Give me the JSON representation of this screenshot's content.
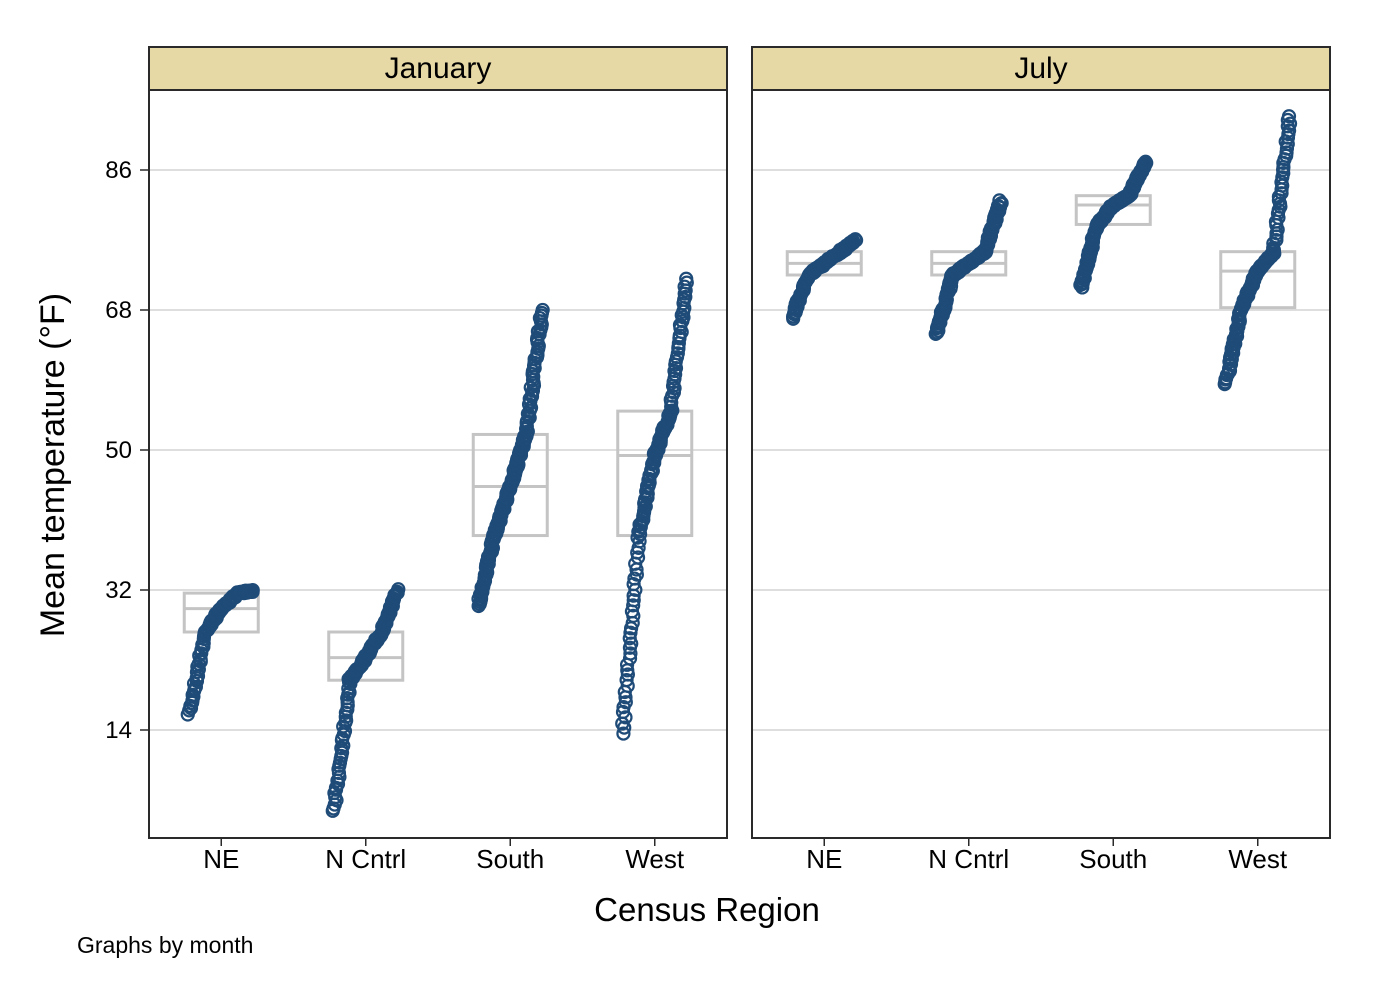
{
  "chart_data": {
    "type": "scatter",
    "subtype": "stripplot-with-boxes",
    "ylabel": "Mean temperature (°F)",
    "xlabel": "Census Region",
    "note": "Graphs by month",
    "yticks": [
      14,
      32,
      50,
      68,
      86
    ],
    "ylim": [
      0,
      96
    ],
    "grid": true,
    "colors": {
      "point": "#1f4b78",
      "box": "#c4c4c4",
      "strip": "#e6d9a6",
      "grid": "#dedede"
    },
    "categories": [
      "NE",
      "N Cntrl",
      "South",
      "West"
    ],
    "panels": [
      {
        "title": "January",
        "groups": [
          {
            "category": "NE",
            "min": 16.1,
            "q1": 26.6,
            "median": 29.6,
            "q3": 31.6,
            "max": 31.9,
            "n": 120
          },
          {
            "category": "N Cntrl",
            "min": 3.5,
            "q1": 20.4,
            "median": 23.3,
            "q3": 26.6,
            "max": 32.0,
            "n": 150
          },
          {
            "category": "South",
            "min": 30.0,
            "q1": 39.0,
            "median": 45.3,
            "q3": 52.0,
            "max": 68.0,
            "n": 180
          },
          {
            "category": "West",
            "min": 13.5,
            "q1": 39.0,
            "median": 49.3,
            "q3": 55.0,
            "max": 72.0,
            "n": 150
          }
        ]
      },
      {
        "title": "July",
        "groups": [
          {
            "category": "NE",
            "min": 67.0,
            "q1": 72.5,
            "median": 74.0,
            "q3": 75.5,
            "max": 77.0,
            "n": 120
          },
          {
            "category": "N Cntrl",
            "min": 65.0,
            "q1": 72.5,
            "median": 74.0,
            "q3": 75.5,
            "max": 82.0,
            "n": 150
          },
          {
            "category": "South",
            "min": 71.0,
            "q1": 79.0,
            "median": 81.5,
            "q3": 82.7,
            "max": 87.0,
            "n": 180
          },
          {
            "category": "West",
            "min": 58.5,
            "q1": 68.3,
            "median": 73.0,
            "q3": 75.5,
            "max": 93.0,
            "n": 150
          }
        ]
      }
    ]
  }
}
